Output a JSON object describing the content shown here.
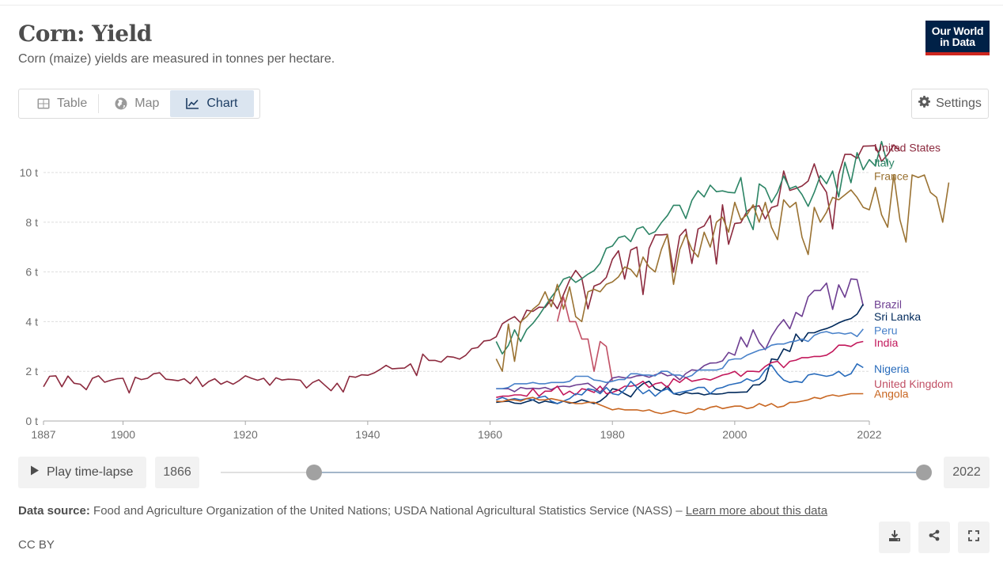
{
  "header": {
    "title": "Corn: Yield",
    "subtitle": "Corn (maize) yields are measured in tonnes per hectare.",
    "logo_line1": "Our World",
    "logo_line2": "in Data",
    "logo_colors": {
      "background": "#002147",
      "accent": "#ce261e"
    }
  },
  "tabs": [
    {
      "label": "Table",
      "icon": "table-icon",
      "active": false
    },
    {
      "label": "Map",
      "icon": "globe-icon",
      "active": false
    },
    {
      "label": "Chart",
      "icon": "line-chart-icon",
      "active": true
    }
  ],
  "settings_label": "Settings",
  "timeline": {
    "play_label": "Play time-lapse",
    "start_year": "1866",
    "end_year": "2022",
    "range_start_fraction": 0.135,
    "range_end_fraction": 1.0
  },
  "footer": {
    "source_label": "Data source:",
    "source_text": "Food and Agriculture Organization of the United Nations; USDA National Agricultural Statistics Service (NASS) –",
    "learn_more": "Learn more about this data",
    "license": "CC BY"
  },
  "actions": [
    {
      "name": "download-button",
      "icon": "download-icon"
    },
    {
      "name": "share-button",
      "icon": "share-icon"
    },
    {
      "name": "fullscreen-button",
      "icon": "fullscreen-icon"
    }
  ],
  "chart_data": {
    "type": "line",
    "title": "Corn: Yield",
    "subtitle": "Corn (maize) yields are measured in tonnes per hectare.",
    "xlabel": "",
    "ylabel": "",
    "xlim": [
      1887,
      2022
    ],
    "ylim": [
      0,
      11.5
    ],
    "grid": "horizontal dashed",
    "legend_placement": "right (line-end labels)",
    "y_ticks": [
      {
        "v": 0,
        "label": "0 t"
      },
      {
        "v": 2,
        "label": "2 t"
      },
      {
        "v": 4,
        "label": "4 t"
      },
      {
        "v": 6,
        "label": "6 t"
      },
      {
        "v": 8,
        "label": "8 t"
      },
      {
        "v": 10,
        "label": "10 t"
      }
    ],
    "x_ticks": [
      {
        "v": 1887,
        "label": "1887"
      },
      {
        "v": 1900,
        "label": "1900"
      },
      {
        "v": 1920,
        "label": "1920"
      },
      {
        "v": 1940,
        "label": "1940"
      },
      {
        "v": 1960,
        "label": "1960"
      },
      {
        "v": 1980,
        "label": "1980"
      },
      {
        "v": 2000,
        "label": "2000"
      },
      {
        "v": 2022,
        "label": "2022"
      }
    ],
    "series": [
      {
        "name": "United States",
        "color": "#8c2a3e",
        "label_y": 11.0,
        "start": 1887,
        "values": [
          1.38,
          1.8,
          1.82,
          1.38,
          1.81,
          1.52,
          1.48,
          1.26,
          1.72,
          1.82,
          1.56,
          1.64,
          1.7,
          1.72,
          1.13,
          1.76,
          1.67,
          1.72,
          1.9,
          1.94,
          1.68,
          1.66,
          1.62,
          1.7,
          1.5,
          1.78,
          1.39,
          1.59,
          1.7,
          1.48,
          1.6,
          1.48,
          1.63,
          1.82,
          1.72,
          1.64,
          1.72,
          1.44,
          1.74,
          1.65,
          1.68,
          1.67,
          1.64,
          1.33,
          1.55,
          1.66,
          1.44,
          1.22,
          1.52,
          1.17,
          1.8,
          1.76,
          1.86,
          1.84,
          1.93,
          2.07,
          2.24,
          2.1,
          2.12,
          2.13,
          2.3,
          1.83,
          2.69,
          2.44,
          2.44,
          2.37,
          2.6,
          2.57,
          2.49,
          2.64,
          2.91,
          2.96,
          3.22,
          3.25,
          3.39,
          3.91,
          4.07,
          4.2,
          3.95,
          4.46,
          4.41,
          4.58,
          4.57,
          4.88,
          4.52,
          5.08,
          5.67,
          6.06,
          5.75,
          4.51,
          5.43,
          5.53,
          5.78,
          6.51,
          6.85,
          5.71,
          6.88,
          7.0,
          5.09,
          6.95,
          7.49,
          7.49,
          7.51,
          5.99,
          7.45,
          7.72,
          6.34,
          7.73,
          7.85,
          8.27,
          6.32,
          8.7,
          7.11,
          7.95,
          7.98,
          8.44,
          8.62,
          8.66,
          8.13,
          8.59,
          8.67,
          10.06,
          9.28,
          9.36,
          9.46,
          9.66,
          10.35,
          9.59,
          9.2,
          7.73,
          9.93,
          10.73,
          10.73,
          10.57,
          11.06,
          11.07,
          11.08,
          10.45,
          10.72,
          11.11,
          10.87
        ]
      },
      {
        "name": "Italy",
        "color": "#2c8465",
        "label_y": 10.4,
        "start": 1961,
        "values": [
          3.2,
          2.7,
          3.04,
          3.67,
          3.2,
          3.68,
          3.93,
          4.25,
          4.62,
          4.98,
          5.3,
          5.71,
          5.8,
          5.58,
          5.73,
          5.91,
          6.05,
          6.35,
          6.95,
          7.04,
          7.38,
          7.45,
          7.22,
          7.73,
          7.82,
          7.51,
          7.62,
          7.98,
          8.27,
          8.68,
          8.68,
          8.15,
          8.88,
          9.27,
          9.02,
          9.49,
          9.23,
          9.26,
          9.2,
          9.18,
          9.8,
          8.28,
          7.7,
          9.54,
          9.37,
          8.79,
          9.2,
          9.86,
          9.35,
          9.45,
          9.11,
          8.64,
          9.2,
          9.88,
          9.55,
          10.06,
          9.02,
          10.41,
          9.59,
          10.8,
          10.11,
          10.52,
          10.26,
          11.25,
          10.3
        ]
      },
      {
        "name": "France",
        "color": "#9a7232",
        "label_y": 9.85,
        "start": 1961,
        "values": [
          2.5,
          2.0,
          3.9,
          2.4,
          4.0,
          4.2,
          4.5,
          4.7,
          5.2,
          4.6,
          5.5,
          4.5,
          5.4,
          4.2,
          4.0,
          5.2,
          5.3,
          5.2,
          5.5,
          5.6,
          5.8,
          6.2,
          6.1,
          5.8,
          6.6,
          6.2,
          6.0,
          6.9,
          7.5,
          5.5,
          6.9,
          7.5,
          6.9,
          6.6,
          7.6,
          7.0,
          8.0,
          8.2,
          7.6,
          8.8,
          8.1,
          8.3,
          8.7,
          8.0,
          8.8,
          7.8,
          7.3,
          8.9,
          8.6,
          8.8,
          7.4,
          6.7,
          8.6,
          8.0,
          8.4,
          9.0,
          8.9,
          9.1,
          9.3,
          9.0,
          8.6,
          8.5,
          9.4,
          8.3,
          7.8,
          9.9,
          8.1,
          7.2,
          9.9,
          9.8,
          9.9,
          9.2,
          9.0,
          8.0,
          9.6
        ]
      },
      {
        "name": "United Kingdom",
        "color": "#c15065",
        "label_y": 1.5,
        "start": 1971,
        "values": [
          4.0,
          5.0,
          4.0,
          4.0,
          3.3,
          3.3,
          2.0,
          3.2,
          3.0,
          1.6
        ]
      },
      {
        "name": "Brazil",
        "color": "#6d3e91",
        "label_y": 4.7,
        "start": 1961,
        "values": [
          1.3,
          1.3,
          1.3,
          1.18,
          1.35,
          1.3,
          1.32,
          1.3,
          1.35,
          1.26,
          1.38,
          1.4,
          1.38,
          1.45,
          1.48,
          1.52,
          1.35,
          1.16,
          1.45,
          1.73,
          1.78,
          1.74,
          1.74,
          1.82,
          1.84,
          1.76,
          1.86,
          1.94,
          1.82,
          1.87,
          1.66,
          1.91,
          2.06,
          2.03,
          2.23,
          2.33,
          2.34,
          2.42,
          2.76,
          2.65,
          3.38,
          2.98,
          3.67,
          3.16,
          2.87,
          3.4,
          3.79,
          4.08,
          3.71,
          4.37,
          4.21,
          5.0,
          5.25,
          5.25,
          5.55,
          4.49,
          5.48,
          4.98,
          5.72,
          5.69,
          4.63
        ]
      },
      {
        "name": "Sri Lanka",
        "color": "#00295b",
        "label_y": 4.2,
        "start": 1961,
        "values": [
          0.75,
          0.78,
          0.8,
          0.72,
          0.7,
          0.78,
          0.85,
          0.72,
          0.8,
          0.75,
          0.7,
          0.8,
          0.72,
          0.75,
          0.85,
          0.78,
          0.7,
          0.8,
          1.0,
          1.3,
          1.25,
          1.1,
          0.97,
          1.3,
          1.5,
          1.6,
          1.3,
          1.2,
          1.4,
          1.1,
          1.05,
          1.15,
          1.1,
          1.12,
          1.05,
          1.1,
          1.08,
          1.1,
          1.15,
          1.15,
          1.16,
          1.17,
          1.45,
          1.46,
          1.65,
          2.5,
          2.46,
          2.9,
          2.8,
          3.5,
          3.2,
          3.55,
          3.55,
          3.65,
          3.72,
          3.82,
          3.95,
          4.05,
          4.12,
          4.3,
          4.7
        ]
      },
      {
        "name": "Peru",
        "color": "#4881c9",
        "label_y": 3.65,
        "start": 1961,
        "values": [
          1.3,
          1.3,
          1.35,
          1.5,
          1.5,
          1.5,
          1.55,
          1.5,
          1.5,
          1.55,
          1.55,
          1.55,
          1.6,
          1.8,
          1.8,
          1.8,
          1.65,
          1.62,
          1.55,
          1.6,
          1.67,
          1.67,
          1.9,
          1.9,
          1.85,
          1.85,
          1.82,
          2.0,
          2.0,
          1.85,
          1.85,
          1.75,
          1.83,
          2.05,
          2.05,
          2.05,
          2.05,
          2.12,
          2.45,
          2.5,
          2.5,
          2.65,
          2.75,
          2.85,
          2.9,
          3.05,
          3.1,
          3.1,
          3.18,
          3.22,
          3.3,
          3.2,
          3.45,
          3.55,
          3.6,
          3.52,
          3.55,
          3.5,
          3.55,
          3.4,
          3.7
        ]
      },
      {
        "name": "India",
        "color": "#c2185b",
        "label_y": 3.15,
        "start": 1961,
        "values": [
          0.95,
          1.0,
          1.0,
          1.05,
          1.05,
          1.0,
          1.3,
          1.0,
          1.2,
          1.2,
          1.4,
          1.05,
          1.2,
          1.05,
          1.3,
          1.25,
          1.15,
          1.4,
          1.1,
          1.15,
          1.25,
          1.4,
          1.4,
          1.45,
          1.6,
          1.35,
          1.5,
          1.55,
          1.35,
          1.7,
          1.55,
          1.75,
          1.6,
          1.65,
          1.7,
          1.65,
          1.75,
          1.85,
          1.9,
          2.0,
          1.8,
          2.0,
          2.0,
          1.98,
          2.2,
          2.35,
          2.4,
          2.15,
          2.4,
          2.45,
          2.55,
          2.55,
          2.6,
          2.6,
          2.65,
          2.8,
          3.05,
          3.05,
          3.0,
          3.15,
          3.2
        ]
      },
      {
        "name": "Nigeria",
        "color": "#286bbb",
        "label_y": 2.1,
        "start": 1961,
        "values": [
          0.85,
          0.95,
          0.85,
          0.9,
          0.85,
          0.9,
          0.85,
          0.95,
          1.0,
          0.8,
          0.7,
          0.8,
          0.9,
          1.1,
          1.05,
          1.3,
          1.25,
          1.1,
          1.35,
          1.1,
          1.05,
          1.25,
          1.6,
          1.35,
          1.1,
          1.25,
          1.0,
          1.2,
          1.3,
          1.1,
          1.15,
          1.2,
          1.25,
          1.35,
          1.35,
          1.1,
          1.3,
          1.35,
          1.45,
          1.5,
          1.55,
          1.7,
          1.6,
          1.7,
          2.05,
          2.25,
          1.9,
          1.65,
          1.55,
          1.6,
          1.55,
          1.85,
          1.9,
          1.85,
          1.8,
          1.85,
          2.0,
          1.8,
          1.9,
          2.3,
          2.15
        ]
      },
      {
        "name": "Angola",
        "color": "#c86621",
        "label_y": 1.1,
        "start": 1961,
        "values": [
          0.8,
          0.78,
          0.85,
          0.85,
          0.8,
          0.9,
          0.95,
          0.85,
          0.85,
          0.9,
          0.85,
          0.8,
          0.75,
          0.7,
          0.7,
          0.75,
          0.75,
          0.65,
          0.55,
          0.45,
          0.5,
          0.45,
          0.45,
          0.45,
          0.4,
          0.45,
          0.35,
          0.3,
          0.35,
          0.42,
          0.35,
          0.3,
          0.35,
          0.5,
          0.45,
          0.55,
          0.6,
          0.5,
          0.55,
          0.6,
          0.6,
          0.5,
          0.55,
          0.7,
          0.6,
          0.7,
          0.55,
          0.6,
          0.75,
          0.75,
          0.8,
          0.85,
          0.95,
          0.9,
          1.0,
          1.05,
          1.0,
          1.05,
          1.1,
          1.1,
          1.1
        ]
      }
    ]
  }
}
